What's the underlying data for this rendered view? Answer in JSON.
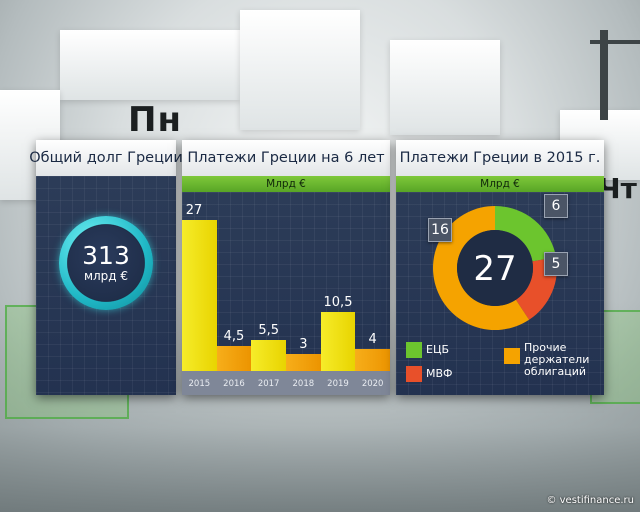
{
  "panels": {
    "total_debt": {
      "title": "Общий долг Греции",
      "value": "313",
      "unit": "млрд €"
    },
    "payments_6y": {
      "title": "Платежи Греции на 6 лет",
      "unit_label": "Млрд €"
    },
    "payments_2015": {
      "title": "Платежи Греции в 2015 г.",
      "unit_label": "Млрд €",
      "center_value": "27",
      "legend": [
        {
          "label": "ЕЦБ",
          "color": "#6cc52e"
        },
        {
          "label": "МВФ",
          "color": "#e8502a"
        },
        {
          "label": "Прочие держатели облигаций",
          "color": "#f5a300"
        }
      ]
    }
  },
  "chart_data": [
    {
      "type": "bar",
      "title": "Платежи Греции на 6 лет",
      "subtitle": "Млрд €",
      "categories": [
        "2015",
        "2016",
        "2017",
        "2018",
        "2019",
        "2020"
      ],
      "values": [
        27,
        4.5,
        5.5,
        3,
        10.5,
        4
      ],
      "value_labels": [
        "27",
        "4,5",
        "5,5",
        "3",
        "10,5",
        "4"
      ],
      "ylim": [
        0,
        28
      ],
      "colors": [
        "#f4e400",
        "#f5a300"
      ]
    },
    {
      "type": "pie",
      "title": "Платежи Греции в 2015 г.",
      "subtitle": "Млрд €",
      "total": 27,
      "slices": [
        {
          "label": "ЕЦБ",
          "value": 6,
          "color": "#6cc52e"
        },
        {
          "label": "МВФ",
          "value": 5,
          "color": "#e8502a"
        },
        {
          "label": "Прочие держатели облигаций",
          "value": 16,
          "color": "#f5a300"
        }
      ]
    }
  ],
  "watermark": "© vestifinance.ru"
}
